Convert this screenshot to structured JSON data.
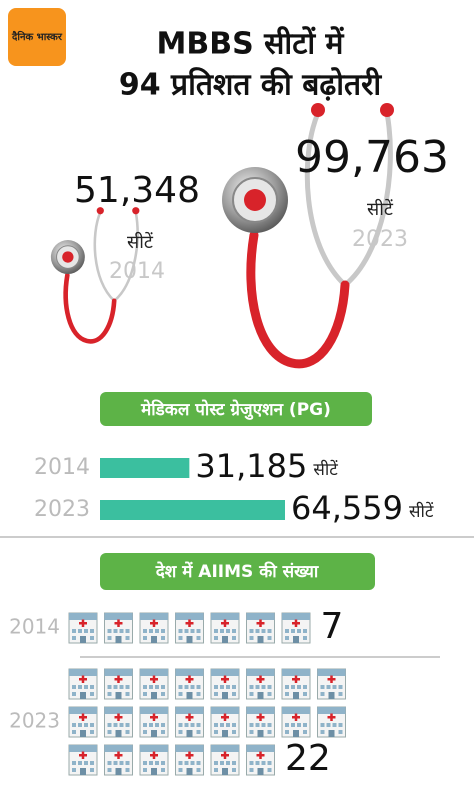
{
  "header": {
    "logo": "दैनिक भास्कर",
    "title": [
      "MBBS सीटों में",
      "94 प्रतिशत की बढ़ोतरी"
    ]
  },
  "mbbs": {
    "items": [
      {
        "value": 51348,
        "value_label": "51,348",
        "unit": "सीटें",
        "year": "2014"
      },
      {
        "value": 99763,
        "value_label": "99,763",
        "unit": "सीटें",
        "year": "2023"
      }
    ]
  },
  "pg": {
    "title": "मेडिकल पोस्ट ग्रेजुएशन (PG)",
    "rows": [
      {
        "year": "2014",
        "value": 31185,
        "value_label": "31,185",
        "unit": "सीटें"
      },
      {
        "year": "2023",
        "value": 64559,
        "value_label": "64,559",
        "unit": "सीटें"
      }
    ]
  },
  "aiims": {
    "title": "देश में AIIMS की संख्या",
    "rows": [
      {
        "year": "2014",
        "value": 7
      },
      {
        "year": "2023",
        "value": 22
      }
    ]
  }
}
